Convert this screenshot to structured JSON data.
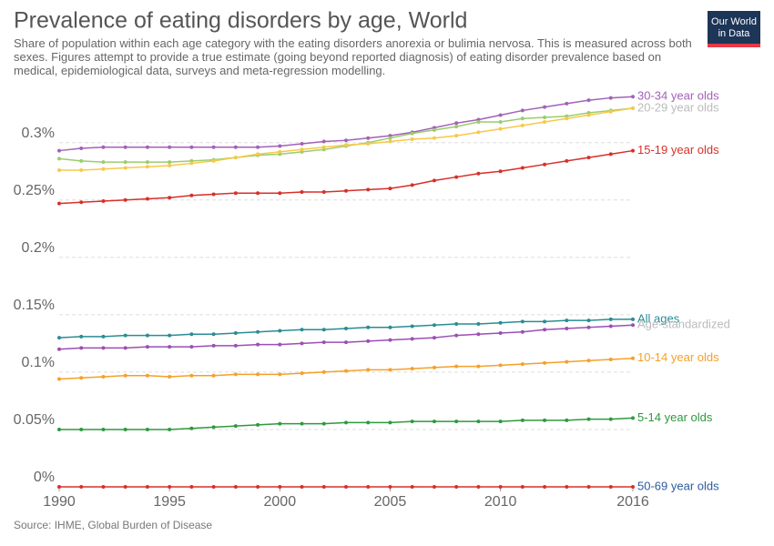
{
  "chart_data": {
    "type": "line",
    "title": "Prevalence of eating disorders by age, World",
    "subtitle": "Share of population within each age category with the eating disorders anorexia or bulimia nervosa. This is measured across both sexes. Figures attempt to provide a true estimate (going beyond reported diagnosis) of eating disorder prevalence based on medical, epidemiological data, surveys and meta-regression modelling.",
    "source": "Source: IHME, Global Burden of Disease",
    "logo": [
      "Our World",
      "in Data"
    ],
    "x": [
      1990,
      1991,
      1992,
      1993,
      1994,
      1995,
      1996,
      1997,
      1998,
      1999,
      2000,
      2001,
      2002,
      2003,
      2004,
      2005,
      2006,
      2007,
      2008,
      2009,
      2010,
      2011,
      2012,
      2013,
      2014,
      2015,
      2016
    ],
    "xlim": [
      1990,
      2016
    ],
    "xticks": [
      1990,
      1995,
      2000,
      2005,
      2010,
      2016
    ],
    "ylim": [
      0,
      0.345
    ],
    "yticks": [
      {
        "value": 0,
        "label": "0%"
      },
      {
        "value": 0.05,
        "label": "0.05%"
      },
      {
        "value": 0.1,
        "label": "0.1%"
      },
      {
        "value": 0.15,
        "label": "0.15%"
      },
      {
        "value": 0.2,
        "label": "0.2%"
      },
      {
        "value": 0.25,
        "label": "0.25%"
      },
      {
        "value": 0.3,
        "label": "0.3%"
      }
    ],
    "grid": true,
    "series": [
      {
        "name": "30-34 year olds",
        "color": "#a262b5",
        "values": [
          0.293,
          0.295,
          0.296,
          0.296,
          0.296,
          0.296,
          0.296,
          0.296,
          0.296,
          0.296,
          0.297,
          0.299,
          0.301,
          0.302,
          0.304,
          0.306,
          0.309,
          0.313,
          0.317,
          0.32,
          0.324,
          0.328,
          0.331,
          0.334,
          0.337,
          0.339,
          0.34
        ]
      },
      {
        "name": "20-29 year olds",
        "color": "#9ccc6d",
        "label_color": "#bbbbbb",
        "values": [
          0.286,
          0.284,
          0.283,
          0.283,
          0.283,
          0.283,
          0.284,
          0.285,
          0.287,
          0.289,
          0.29,
          0.292,
          0.294,
          0.297,
          0.3,
          0.304,
          0.308,
          0.311,
          0.314,
          0.318,
          0.318,
          0.321,
          0.322,
          0.323,
          0.326,
          0.328,
          0.33
        ]
      },
      {
        "color": "#f7c948",
        "values": [
          0.276,
          0.276,
          0.277,
          0.278,
          0.279,
          0.28,
          0.282,
          0.284,
          0.287,
          0.29,
          0.292,
          0.294,
          0.296,
          0.298,
          0.299,
          0.301,
          0.303,
          0.304,
          0.306,
          0.309,
          0.312,
          0.315,
          0.318,
          0.321,
          0.324,
          0.327,
          0.33
        ]
      },
      {
        "name": "15-19 year olds",
        "color": "#d7302a",
        "values": [
          0.247,
          0.248,
          0.249,
          0.25,
          0.251,
          0.252,
          0.254,
          0.255,
          0.256,
          0.256,
          0.256,
          0.257,
          0.257,
          0.258,
          0.259,
          0.26,
          0.263,
          0.267,
          0.27,
          0.273,
          0.275,
          0.278,
          0.281,
          0.284,
          0.287,
          0.29,
          0.293
        ]
      },
      {
        "name": "All ages",
        "color": "#2a8c94",
        "values": [
          0.13,
          0.131,
          0.131,
          0.132,
          0.132,
          0.132,
          0.133,
          0.133,
          0.134,
          0.135,
          0.136,
          0.137,
          0.137,
          0.138,
          0.139,
          0.139,
          0.14,
          0.141,
          0.142,
          0.142,
          0.143,
          0.144,
          0.144,
          0.145,
          0.145,
          0.146,
          0.146
        ]
      },
      {
        "name": "Age-standardized",
        "color": "#9b4fb5",
        "label_color": "#bbbbbb",
        "values": [
          0.12,
          0.121,
          0.121,
          0.121,
          0.122,
          0.122,
          0.122,
          0.123,
          0.123,
          0.124,
          0.124,
          0.125,
          0.126,
          0.126,
          0.127,
          0.128,
          0.129,
          0.13,
          0.132,
          0.133,
          0.134,
          0.135,
          0.137,
          0.138,
          0.139,
          0.14,
          0.141
        ]
      },
      {
        "name": "10-14 year olds",
        "color": "#f5a02a",
        "values": [
          0.094,
          0.095,
          0.096,
          0.097,
          0.097,
          0.096,
          0.097,
          0.097,
          0.098,
          0.098,
          0.098,
          0.099,
          0.1,
          0.101,
          0.102,
          0.102,
          0.103,
          0.104,
          0.105,
          0.105,
          0.106,
          0.107,
          0.108,
          0.109,
          0.11,
          0.111,
          0.112
        ]
      },
      {
        "name": "5-14 year olds",
        "color": "#2e9a3e",
        "values": [
          0.05,
          0.05,
          0.05,
          0.05,
          0.05,
          0.05,
          0.051,
          0.052,
          0.053,
          0.054,
          0.055,
          0.055,
          0.055,
          0.056,
          0.056,
          0.056,
          0.057,
          0.057,
          0.057,
          0.057,
          0.057,
          0.058,
          0.058,
          0.058,
          0.059,
          0.059,
          0.06
        ]
      },
      {
        "name": "50-69 year olds",
        "color": "#d7302a",
        "label_color": "#2c5aa0",
        "values": [
          0,
          0,
          0,
          0,
          0,
          0,
          0,
          0,
          0,
          0,
          0,
          0,
          0,
          0,
          0,
          0,
          0,
          0,
          0,
          0,
          0,
          0,
          0,
          0,
          0,
          0,
          0
        ]
      }
    ]
  }
}
